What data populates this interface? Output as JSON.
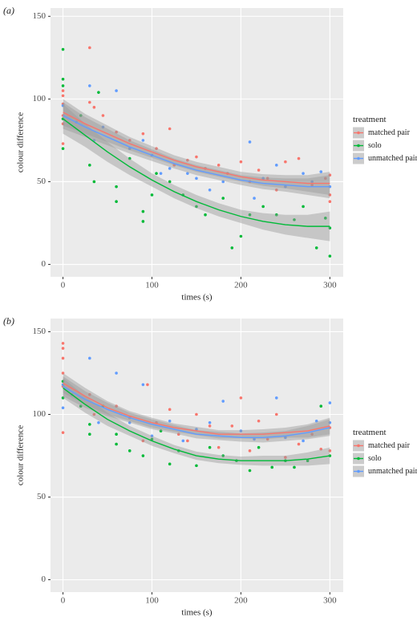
{
  "chart_data": [
    {
      "type": "scatter",
      "label": "(a)",
      "x_label": "times (s)",
      "y_label": "colour difference",
      "legend_title": "treatment",
      "xlim": [
        -14,
        315
      ],
      "ylim": [
        -7.5,
        155
      ],
      "xticks": [
        0,
        100,
        200,
        300
      ],
      "yticks": [
        0,
        50,
        100,
        150
      ],
      "grid": true,
      "legend": "right",
      "fit_x": [
        0,
        25,
        50,
        75,
        100,
        125,
        150,
        175,
        200,
        225,
        250,
        275,
        300
      ],
      "series": [
        {
          "name": "matched pair",
          "color": "#f8766d",
          "x": [
            0,
            0,
            0,
            0,
            0,
            0,
            30,
            30,
            35,
            45,
            60,
            75,
            90,
            105,
            120,
            125,
            140,
            150,
            160,
            175,
            185,
            200,
            210,
            220,
            230,
            240,
            250,
            265,
            280,
            295,
            300,
            300,
            300
          ],
          "values": [
            105,
            102,
            97,
            90,
            85,
            73,
            131,
            98,
            95,
            90,
            80,
            75,
            79,
            70,
            82,
            60,
            63,
            65,
            58,
            60,
            55,
            62,
            50,
            57,
            52,
            45,
            62,
            64,
            48,
            52,
            42,
            38,
            54
          ],
          "fit": [
            92,
            85,
            79,
            73,
            68,
            63,
            59,
            56,
            53,
            51,
            50,
            49,
            49
          ],
          "fit_lower": [
            84,
            79,
            74,
            69,
            64.5,
            60,
            56,
            53,
            50,
            47.5,
            46,
            44,
            42
          ],
          "fit_upper": [
            100,
            91,
            84,
            77,
            71.5,
            66,
            62,
            59,
            56,
            54.5,
            54,
            54,
            56
          ]
        },
        {
          "name": "solo",
          "color": "#00ba38",
          "x": [
            0,
            0,
            0,
            0,
            0,
            20,
            30,
            35,
            40,
            60,
            60,
            75,
            90,
            90,
            100,
            105,
            120,
            135,
            150,
            160,
            180,
            190,
            200,
            210,
            225,
            240,
            260,
            270,
            285,
            295,
            300,
            300
          ],
          "values": [
            130,
            112,
            108,
            88,
            70,
            90,
            60,
            50,
            104,
            47,
            38,
            64,
            32,
            26,
            42,
            55,
            50,
            42,
            35,
            30,
            40,
            10,
            17,
            30,
            35,
            30,
            27,
            35,
            10,
            28,
            5,
            22
          ],
          "fit": [
            88,
            78,
            68,
            59,
            51,
            44,
            38,
            33,
            29,
            26,
            24,
            23,
            23
          ],
          "fit_lower": [
            79,
            71,
            62,
            54,
            47,
            40,
            34,
            29,
            25,
            21,
            18,
            16,
            14
          ],
          "fit_upper": [
            97,
            85,
            74,
            64,
            55,
            48,
            42,
            37,
            33,
            31,
            30,
            30,
            32
          ]
        },
        {
          "name": "unmatched pair",
          "color": "#619cff",
          "x": [
            0,
            15,
            30,
            35,
            45,
            60,
            75,
            90,
            100,
            110,
            120,
            140,
            150,
            165,
            180,
            210,
            215,
            225,
            240,
            250,
            270,
            280,
            290,
            300
          ],
          "values": [
            96,
            86,
            108,
            75,
            83,
            105,
            70,
            75,
            66,
            55,
            58,
            55,
            52,
            45,
            50,
            74,
            40,
            52,
            60,
            47,
            55,
            50,
            56,
            47
          ],
          "fit": [
            90,
            83,
            77,
            71,
            66,
            61,
            57,
            54,
            51,
            49,
            48,
            47,
            47
          ],
          "fit_lower": [
            82,
            77,
            72,
            67,
            62.5,
            58,
            54,
            51,
            48,
            45.5,
            44,
            42,
            40
          ],
          "fit_upper": [
            98,
            89,
            82,
            75,
            69.5,
            64,
            60,
            57,
            54,
            52.5,
            52,
            52,
            54
          ]
        }
      ]
    },
    {
      "type": "scatter",
      "label": "(b)",
      "x_label": "times (s)",
      "y_label": "colour difference",
      "legend_title": "treatment",
      "xlim": [
        -14,
        315
      ],
      "ylim": [
        -7.5,
        158
      ],
      "xticks": [
        0,
        100,
        200,
        300
      ],
      "yticks": [
        0,
        50,
        100,
        150
      ],
      "grid": true,
      "legend": "right",
      "fit_x": [
        0,
        25,
        50,
        75,
        100,
        125,
        150,
        175,
        200,
        225,
        250,
        275,
        300
      ],
      "series": [
        {
          "name": "matched pair",
          "color": "#f8766d",
          "x": [
            0,
            0,
            0,
            0,
            0,
            0,
            30,
            35,
            60,
            75,
            90,
            95,
            105,
            120,
            130,
            140,
            150,
            165,
            175,
            190,
            200,
            210,
            220,
            230,
            240,
            250,
            265,
            280,
            290,
            300,
            300
          ],
          "values": [
            143,
            140,
            134,
            125,
            117,
            89,
            112,
            100,
            105,
            98,
            84,
            118,
            95,
            103,
            88,
            84,
            100,
            93,
            80,
            93,
            110,
            78,
            96,
            85,
            100,
            74,
            82,
            88,
            79,
            92,
            78
          ],
          "fit": [
            119,
            111,
            104,
            99,
            95,
            92,
            90,
            88,
            88,
            88,
            89,
            90,
            93
          ],
          "fit_lower": [
            113,
            106,
            100,
            96,
            92,
            89.5,
            87.5,
            85.5,
            85.5,
            85,
            86,
            86,
            88
          ],
          "fit_upper": [
            125,
            116,
            108,
            102,
            98,
            94.5,
            92.5,
            90.5,
            90.5,
            91,
            92,
            94,
            98
          ]
        },
        {
          "name": "solo",
          "color": "#00ba38",
          "x": [
            0,
            0,
            20,
            30,
            30,
            45,
            60,
            60,
            75,
            90,
            100,
            110,
            120,
            130,
            150,
            165,
            180,
            195,
            210,
            220,
            235,
            250,
            260,
            275,
            290,
            300
          ],
          "values": [
            120,
            110,
            105,
            94,
            88,
            105,
            88,
            82,
            78,
            75,
            85,
            90,
            70,
            78,
            69,
            80,
            75,
            72,
            66,
            80,
            68,
            72,
            68,
            72,
            105,
            75
          ],
          "fit": [
            116,
            106,
            97,
            90,
            84,
            79,
            75,
            73,
            72,
            72,
            72,
            73,
            75
          ],
          "fit_lower": [
            110,
            101,
            93,
            87,
            81,
            76.5,
            72.5,
            70.5,
            69.5,
            69,
            69,
            69,
            70
          ],
          "fit_upper": [
            122,
            111,
            101,
            93,
            87,
            81.5,
            77.5,
            75.5,
            74.5,
            75,
            75,
            77,
            80
          ]
        },
        {
          "name": "unmatched pair",
          "color": "#619cff",
          "x": [
            0,
            0,
            10,
            30,
            40,
            60,
            75,
            90,
            100,
            120,
            135,
            150,
            165,
            180,
            200,
            215,
            240,
            250,
            270,
            285,
            300,
            300
          ],
          "values": [
            118,
            104,
            112,
            134,
            95,
            125,
            95,
            118,
            87,
            96,
            84,
            91,
            95,
            108,
            90,
            85,
            110,
            86,
            84,
            96,
            107,
            95
          ],
          "fit": [
            117,
            109,
            103,
            98,
            94,
            91,
            88,
            87,
            86,
            86,
            87,
            89,
            92
          ],
          "fit_lower": [
            111,
            104,
            99,
            95,
            91,
            88.5,
            85.5,
            84.5,
            83.5,
            83,
            84,
            85,
            87
          ],
          "fit_upper": [
            123,
            114,
            107,
            101,
            97,
            93.5,
            90.5,
            89.5,
            88.5,
            89,
            90,
            93,
            97
          ]
        }
      ]
    }
  ]
}
